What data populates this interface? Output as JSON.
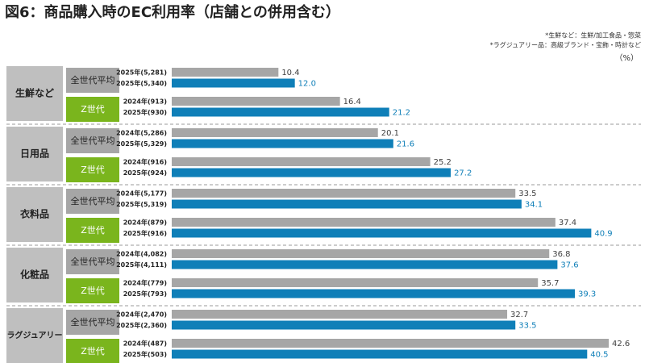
{
  "chart_data": {
    "type": "bar",
    "title": "図6：商品購入時のEC利用率（店舗との併用含む）",
    "notes": [
      "*生鮮など：生鮮/加工食品・惣菜",
      "*ラグジュアリー品：高級ブランド・宝飾・時計など"
    ],
    "unit": "（%）",
    "colors": [
      "#a6a6a6",
      "#0f7fb8"
    ],
    "label_colors": [
      "#404040",
      "#0f7fb8"
    ],
    "subgroup_colors": [
      "#a6a6a6",
      "#7ab51d"
    ],
    "groups": [
      {
        "label": "生鮮など",
        "subgroups": [
          {
            "label": "全世代平均",
            "bars": [
              {
                "label": "2025年(5,281)",
                "value": 10.4
              },
              {
                "label": "2025年(5,340)",
                "value": 12.0,
                "value_label": "12.0"
              }
            ]
          },
          {
            "label": "Z世代",
            "bars": [
              {
                "label": "2024年(913)",
                "value": 16.4
              },
              {
                "label": "2025年(930)",
                "value": 21.2
              }
            ]
          }
        ]
      },
      {
        "label": "日用品",
        "subgroups": [
          {
            "label": "全世代平均",
            "bars": [
              {
                "label": "2024年(5,286)",
                "value": 20.1
              },
              {
                "label": "2025年(5,329)",
                "value": 21.6
              }
            ]
          },
          {
            "label": "Z世代",
            "bars": [
              {
                "label": "2024年(916)",
                "value": 25.2
              },
              {
                "label": "2025年(924)",
                "value": 27.2
              }
            ]
          }
        ]
      },
      {
        "label": "衣料品",
        "subgroups": [
          {
            "label": "全世代平均",
            "bars": [
              {
                "label": "2024年(5,177)",
                "value": 33.5
              },
              {
                "label": "2025年(5,319)",
                "value": 34.1
              }
            ]
          },
          {
            "label": "Z世代",
            "bars": [
              {
                "label": "2024年(879)",
                "value": 37.4
              },
              {
                "label": "2025年(916)",
                "value": 40.9
              }
            ]
          }
        ]
      },
      {
        "label": "化粧品",
        "subgroups": [
          {
            "label": "全世代平均",
            "bars": [
              {
                "label": "2024年(4,082)",
                "value": 36.8
              },
              {
                "label": "2025年(4,111)",
                "value": 37.6
              }
            ]
          },
          {
            "label": "Z世代",
            "bars": [
              {
                "label": "2024年(779)",
                "value": 35.7
              },
              {
                "label": "2025年(793)",
                "value": 39.3
              }
            ]
          }
        ]
      },
      {
        "label": "ラグジュアリー",
        "subgroups": [
          {
            "label": "全世代平均",
            "bars": [
              {
                "label": "2024年(2,470)",
                "value": 32.7
              },
              {
                "label": "2025年(2,360)",
                "value": 33.5
              }
            ]
          },
          {
            "label": "Z世代",
            "bars": [
              {
                "label": "2024年(487)",
                "value": 42.6
              },
              {
                "label": "2025年(503)",
                "value": 40.5
              }
            ]
          }
        ]
      }
    ]
  }
}
